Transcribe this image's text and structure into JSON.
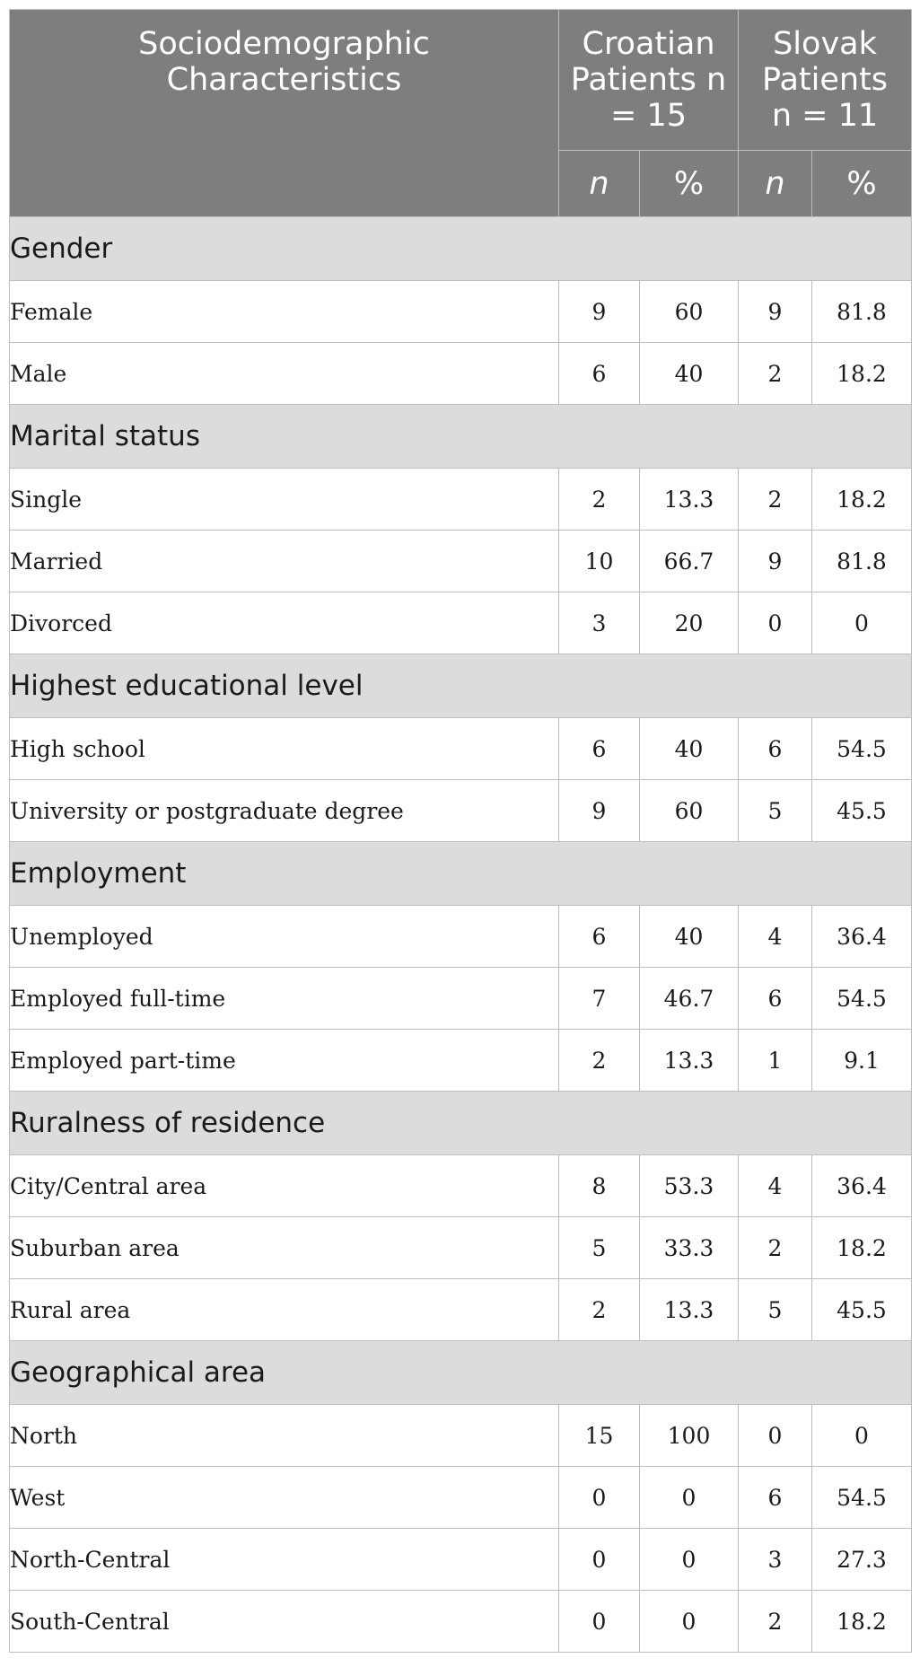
{
  "header": {
    "characteristics": "Sociodemographic Characteristics",
    "croatian": "Croatian Patients n = 15",
    "slovak": "Slovak Patients n = 11",
    "sub": [
      "n",
      "%",
      "n",
      "%"
    ]
  },
  "sections": [
    {
      "title": "Gender",
      "rows": [
        [
          "Female",
          "9",
          "60",
          "9",
          "81.8"
        ],
        [
          "Male",
          "6",
          "40",
          "2",
          "18.2"
        ]
      ]
    },
    {
      "title": "Marital status",
      "rows": [
        [
          "Single",
          "2",
          "13.3",
          "2",
          "18.2"
        ],
        [
          "Married",
          "10",
          "66.7",
          "9",
          "81.8"
        ],
        [
          "Divorced",
          "3",
          "20",
          "0",
          "0"
        ]
      ]
    },
    {
      "title": "Highest educational level",
      "rows": [
        [
          "High school",
          "6",
          "40",
          "6",
          "54.5"
        ],
        [
          "University or postgraduate degree",
          "9",
          "60",
          "5",
          "45.5"
        ]
      ]
    },
    {
      "title": "Employment",
      "rows": [
        [
          "Unemployed",
          "6",
          "40",
          "4",
          "36.4"
        ],
        [
          "Employed full-time",
          "7",
          "46.7",
          "6",
          "54.5"
        ],
        [
          "Employed part-time",
          "2",
          "13.3",
          "1",
          "9.1"
        ]
      ]
    },
    {
      "title": "Ruralness of residence",
      "rows": [
        [
          "City/Central area",
          "8",
          "53.3",
          "4",
          "36.4"
        ],
        [
          "Suburban area",
          "5",
          "33.3",
          "2",
          "18.2"
        ],
        [
          "Rural area",
          "2",
          "13.3",
          "5",
          "45.5"
        ]
      ]
    },
    {
      "title": "Geographical area",
      "rows": [
        [
          "North",
          "15",
          "100",
          "0",
          "0"
        ],
        [
          "West",
          "0",
          "0",
          "6",
          "54.5"
        ],
        [
          "North-Central",
          "0",
          "0",
          "3",
          "27.3"
        ],
        [
          "South-Central",
          "0",
          "0",
          "2",
          "18.2"
        ]
      ]
    }
  ]
}
